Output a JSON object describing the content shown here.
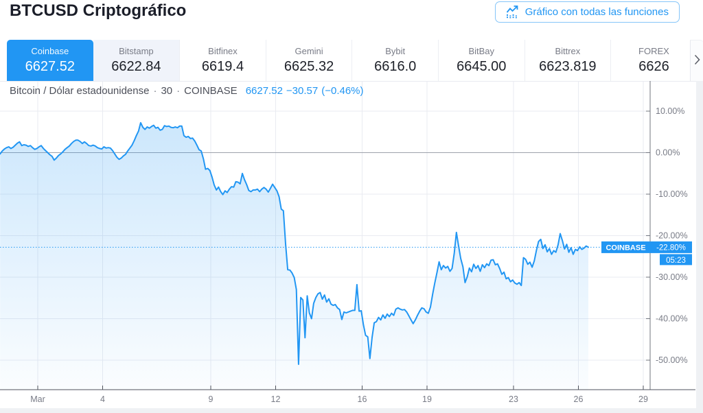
{
  "header": {
    "title": "BTCUSD Criptográfico",
    "button_label": "Gráfico con todas las funciones"
  },
  "tabs": [
    {
      "name": "Coinbase",
      "value": "6627.52",
      "selected": true,
      "muted": false
    },
    {
      "name": "Bitstamp",
      "value": "6622.84",
      "selected": false,
      "muted": true
    },
    {
      "name": "Bitfinex",
      "value": "6619.4",
      "selected": false,
      "muted": false
    },
    {
      "name": "Gemini",
      "value": "6625.32",
      "selected": false,
      "muted": false
    },
    {
      "name": "Bybit",
      "value": "6616.0",
      "selected": false,
      "muted": false
    },
    {
      "name": "BitBay",
      "value": "6645.00",
      "selected": false,
      "muted": false
    },
    {
      "name": "Bittrex",
      "value": "6623.819",
      "selected": false,
      "muted": false
    },
    {
      "name": "FOREX",
      "value": "6626",
      "selected": false,
      "muted": false
    }
  ],
  "symbol_info": {
    "description": "Bitcoin / Dólar estadounidense",
    "separator": "·",
    "interval": "30",
    "exchange": "COINBASE",
    "price": "6627.52",
    "change": "−30.57",
    "change_pct": "(−0.46%)"
  },
  "chart_data": {
    "type": "area",
    "title": "BTCUSD change from period start (%), 30-minute bars, March",
    "xlabel": "",
    "ylabel": "%",
    "grid": true,
    "legend_position": "none",
    "x_axis": {
      "labels": [
        "Mar",
        "4",
        "9",
        "12",
        "16",
        "19",
        "23",
        "26",
        "29"
      ],
      "label_days": [
        1,
        4,
        9,
        12,
        16,
        19,
        23,
        26,
        29
      ]
    },
    "y_axis": {
      "labels": [
        "10.00%",
        "0.00%",
        "-10.00%",
        "-20.00%",
        "-30.00%",
        "-40.00%",
        "-50.00%"
      ],
      "values": [
        10,
        0,
        -10,
        -20,
        -30,
        -40,
        -50
      ]
    },
    "ylim": [
      -57,
      17
    ],
    "current": {
      "label": "COINBASE",
      "value_pct": -22.8,
      "value_label": "-22.80%",
      "countdown": "05:23"
    },
    "series": [
      {
        "name": "COINBASE",
        "points": {
          "start_day": -0.74,
          "step_days": 0.1,
          "pct": [
            -0.3,
            0.4,
            0.9,
            1.2,
            1.4,
            1.0,
            1.3,
            1.8,
            2.3,
            2.6,
            1.7,
            1.9,
            1.8,
            1.5,
            1.7,
            1.2,
            0.8,
            1.0,
            1.4,
            1.7,
            1.0,
            0.5,
            0.0,
            -0.5,
            -0.9,
            -1.8,
            -1.3,
            -0.7,
            -0.3,
            0.2,
            0.8,
            1.2,
            1.6,
            2.2,
            2.7,
            3.0,
            3.0,
            2.7,
            2.2,
            2.6,
            2.2,
            1.7,
            1.6,
            1.8,
            1.6,
            1.2,
            1.0,
            0.9,
            1.4,
            1.1,
            1.2,
            1.1,
            0.5,
            -0.3,
            -1.1,
            -1.6,
            -1.3,
            -0.8,
            -0.4,
            0.4,
            1.1,
            1.8,
            2.9,
            4.1,
            5.2,
            7.2,
            6.1,
            5.6,
            6.2,
            5.9,
            6.3,
            6.6,
            5.9,
            6.1,
            5.4,
            5.6,
            6.5,
            6.3,
            6.4,
            6.1,
            6.0,
            6.2,
            6.0,
            6.4,
            6.4,
            4.1,
            3.7,
            3.9,
            3.4,
            3.5,
            2.8,
            1.8,
            0.7,
            0.4,
            -1.5,
            -4.0,
            -3.8,
            -4.3,
            -5.9,
            -7.8,
            -9.0,
            -8.3,
            -9.4,
            -10.1,
            -9.2,
            -9.6,
            -8.8,
            -8.2,
            -8.3,
            -7.0,
            -7.1,
            -7.5,
            -5.0,
            -6.5,
            -7.7,
            -9.1,
            -9.4,
            -9.0,
            -9.0,
            -8.8,
            -9.4,
            -8.8,
            -8.4,
            -8.8,
            -9.5,
            -8.6,
            -7.6,
            -8.4,
            -9.2,
            -10.6,
            -13.6,
            -14.0,
            -22.0,
            -28.2,
            -28.3,
            -29.0,
            -30.1,
            -33.0,
            -51.0,
            -34.9,
            -35.5,
            -44.6,
            -34.5,
            -38.6,
            -40.0,
            -36.3,
            -34.9,
            -34.0,
            -33.7,
            -35.3,
            -34.3,
            -36.0,
            -35.2,
            -36.5,
            -36.8,
            -36.6,
            -37.4,
            -37.8,
            -40.2,
            -38.4,
            -38.6,
            -38.4,
            -38.2,
            -38.0,
            -38.0,
            -31.8,
            -38.2,
            -38.1,
            -41.5,
            -44.0,
            -44.4,
            -49.6,
            -44.5,
            -41.0,
            -40.7,
            -39.7,
            -40.3,
            -39.1,
            -39.9,
            -38.9,
            -39.5,
            -38.7,
            -39.2,
            -37.7,
            -37.4,
            -37.7,
            -37.9,
            -37.8,
            -38.4,
            -39.3,
            -40.3,
            -41.2,
            -40.3,
            -39.2,
            -38.2,
            -37.4,
            -37.6,
            -38.4,
            -38.7,
            -37.2,
            -34.1,
            -31.4,
            -28.9,
            -26.3,
            -28.2,
            -27.2,
            -27.8,
            -27.4,
            -28.6,
            -27.9,
            -24.2,
            -19.2,
            -22.5,
            -25.5,
            -27.5,
            -31.3,
            -29.9,
            -27.8,
            -28.7,
            -26.9,
            -27.9,
            -27.2,
            -28.6,
            -27.0,
            -27.7,
            -26.8,
            -27.2,
            -25.9,
            -25.8,
            -27.0,
            -26.8,
            -27.9,
            -29.3,
            -28.8,
            -30.4,
            -30.1,
            -31.1,
            -30.7,
            -31.4,
            -31.7,
            -31.3,
            -32.0,
            -25.3,
            -25.7,
            -26.9,
            -26.4,
            -27.6,
            -26.1,
            -23.5,
            -21.4,
            -20.9,
            -23.1,
            -22.2,
            -23.9,
            -23.1,
            -24.5,
            -23.6,
            -24.0,
            -22.2,
            -19.5,
            -21.2,
            -23.2,
            -22.1,
            -24.0,
            -22.9,
            -24.5,
            -23.3,
            -23.6,
            -22.7,
            -23.3,
            -23.0,
            -22.5,
            -22.8
          ]
        }
      }
    ]
  },
  "colors": {
    "accent_blue": "#2196f3",
    "line_blue": "#2196f3",
    "fill_blue": "#2196f3",
    "label_bg": "#2196f3",
    "label_text": "#ffffff",
    "grid": "#e9ebf1",
    "zero_line": "#9da1aa",
    "y_axis_line": "#70747e",
    "x_axis_line": "#4d515c",
    "axis_text": "#787b86",
    "tab_muted_bg": "#f0f3fa",
    "title_text": "#1b1e29"
  }
}
